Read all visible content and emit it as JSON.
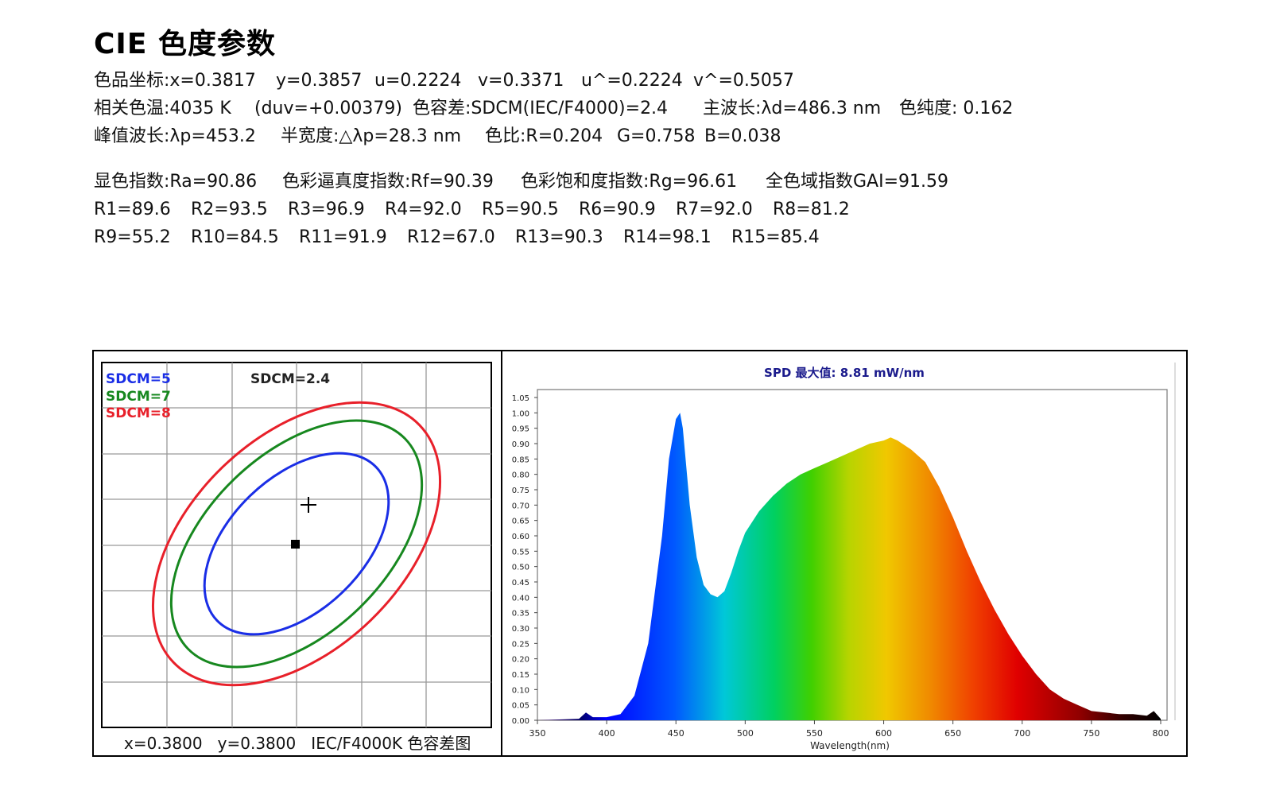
{
  "title": "CIE 色度参数",
  "params": {
    "row1": [
      "色品坐标:x=0.3817",
      "y=0.3857",
      "u=0.2224",
      "v=0.3371",
      "u^=0.2224",
      "v^=0.5057"
    ],
    "row2": [
      "相关色温:4035 K",
      "(duv=+0.00379)",
      "色容差:SDCM(IEC/F4000)=2.4",
      "主波长:λd=486.3 nm",
      "色纯度: 0.162"
    ],
    "row3": [
      "峰值波长:λp=453.2",
      "半宽度:△λp=28.3 nm",
      "色比:R=0.204",
      "G=0.758",
      "B=0.038"
    ],
    "row4": [
      "显色指数:Ra=90.86",
      "色彩逼真度指数:Rf=90.39",
      "色彩饱和度指数:Rg=96.61",
      "全色域指数GAI=91.59"
    ],
    "row5": [
      "R1=89.6",
      "R2=93.5",
      "R3=96.9",
      "R4=92.0",
      "R5=90.5",
      "R6=90.9",
      "R7=92.0",
      "R8=81.2"
    ],
    "row6": [
      "R9=55.2",
      "R10=84.5",
      "R11=91.9",
      "R12=67.0",
      "R13=90.3",
      "R14=98.1",
      "R15=85.4"
    ]
  },
  "colors": {
    "sdcm5": "#1a2ee6",
    "sdcm7": "#17881f",
    "sdcm8": "#e8202a",
    "spd_title": "#1a1a8c"
  },
  "chart_data": [
    {
      "type": "scatter",
      "title": "SDCM=2.4",
      "legend": [
        "SDCM=5",
        "SDCM=7",
        "SDCM=8"
      ],
      "legend_position": "top-left",
      "caption": "x=0.3800   y=0.3800   IEC/F4000K 色容差图",
      "grid": true,
      "series": [
        {
          "name": "SDCM=5",
          "shape": "ellipse"
        },
        {
          "name": "SDCM=7",
          "shape": "ellipse"
        },
        {
          "name": "SDCM=8",
          "shape": "ellipse"
        }
      ],
      "points": [
        {
          "label": "measured",
          "marker": "plus",
          "x": 0.3817,
          "y": 0.3857
        },
        {
          "label": "center",
          "marker": "square",
          "x": 0.38,
          "y": 0.38
        }
      ]
    },
    {
      "type": "area",
      "title": "SPD 最大值: 8.81 mW/nm",
      "xlabel": "Wavelength(nm)",
      "ylabel": "",
      "xlim": [
        350,
        800
      ],
      "ylim": [
        0,
        1.05
      ],
      "xticks": [
        350,
        400,
        450,
        500,
        550,
        600,
        650,
        700,
        750,
        800
      ],
      "yticks": [
        "0.00",
        "0.05",
        "0.10",
        "0.15",
        "0.20",
        "0.25",
        "0.30",
        "0.35",
        "0.40",
        "0.45",
        "0.50",
        "0.55",
        "0.60",
        "0.65",
        "0.70",
        "0.75",
        "0.80",
        "0.85",
        "0.90",
        "0.95",
        "1.00",
        "1.05"
      ],
      "x": [
        350,
        380,
        385,
        390,
        400,
        410,
        420,
        430,
        440,
        445,
        450,
        453,
        455,
        460,
        465,
        470,
        475,
        480,
        485,
        490,
        495,
        500,
        510,
        520,
        530,
        540,
        550,
        560,
        570,
        580,
        590,
        600,
        605,
        610,
        620,
        630,
        640,
        650,
        660,
        670,
        680,
        690,
        700,
        710,
        720,
        730,
        740,
        750,
        760,
        770,
        780,
        790,
        795,
        800
      ],
      "values": [
        0.0,
        0.005,
        0.025,
        0.01,
        0.01,
        0.02,
        0.08,
        0.25,
        0.6,
        0.85,
        0.98,
        1.0,
        0.95,
        0.7,
        0.53,
        0.44,
        0.41,
        0.4,
        0.42,
        0.48,
        0.55,
        0.61,
        0.68,
        0.73,
        0.77,
        0.8,
        0.82,
        0.84,
        0.86,
        0.88,
        0.9,
        0.91,
        0.92,
        0.91,
        0.88,
        0.84,
        0.76,
        0.66,
        0.55,
        0.45,
        0.36,
        0.28,
        0.21,
        0.15,
        0.1,
        0.07,
        0.05,
        0.03,
        0.025,
        0.02,
        0.02,
        0.015,
        0.03,
        0.005
      ]
    }
  ]
}
